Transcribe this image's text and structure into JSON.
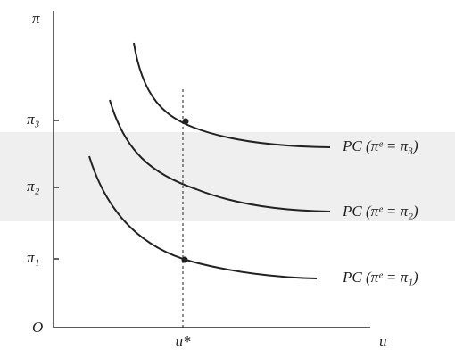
{
  "axes": {
    "y_label": "π",
    "x_label": "u",
    "origin": "O"
  },
  "y_ticks": [
    "π₃",
    "π₂",
    "π₁"
  ],
  "x_ticks": [
    "u*"
  ],
  "curves": [
    {
      "label": "PC (πᵉ = π₃)"
    },
    {
      "label": "PC (πᵉ = π₂)"
    },
    {
      "label": "PC (πᵉ = π₁)"
    }
  ]
}
